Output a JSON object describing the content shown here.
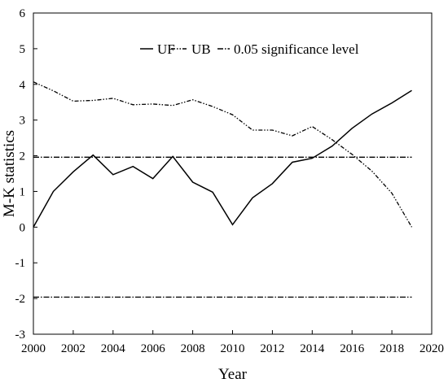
{
  "chart_data": {
    "type": "line",
    "xlabel": "Year",
    "ylabel": "M-K statistics",
    "xlim": [
      2000,
      2020
    ],
    "ylim": [
      -3,
      6
    ],
    "xticks": [
      "2000",
      "2002",
      "2004",
      "2006",
      "2008",
      "2010",
      "2012",
      "2014",
      "2016",
      "2018",
      "2020"
    ],
    "yticks": [
      "-3",
      "-2",
      "-1",
      "0",
      "1",
      "2",
      "3",
      "4",
      "5",
      "6"
    ],
    "grid": false,
    "legend_position": "top-right",
    "series": [
      {
        "name": "UF",
        "style": "solid",
        "x": [
          2000,
          2001,
          2002,
          2003,
          2004,
          2005,
          2006,
          2007,
          2008,
          2009,
          2010,
          2011,
          2012,
          2013,
          2014,
          2015,
          2016,
          2017,
          2018,
          2019
        ],
        "y": [
          0.0,
          1.0,
          1.55,
          2.02,
          1.47,
          1.7,
          1.36,
          1.98,
          1.26,
          0.98,
          0.07,
          0.82,
          1.22,
          1.82,
          1.93,
          2.27,
          2.77,
          3.17,
          3.48,
          3.83
        ]
      },
      {
        "name": "UB",
        "style": "dash-dot-dot",
        "x": [
          2000,
          2001,
          2002,
          2003,
          2004,
          2005,
          2006,
          2007,
          2008,
          2009,
          2010,
          2011,
          2012,
          2013,
          2014,
          2015,
          2016,
          2017,
          2018,
          2019
        ],
        "y": [
          4.07,
          3.82,
          3.53,
          3.55,
          3.61,
          3.43,
          3.45,
          3.41,
          3.57,
          3.38,
          3.15,
          2.72,
          2.72,
          2.56,
          2.82,
          2.45,
          2.04,
          1.57,
          0.95,
          0.0
        ]
      },
      {
        "name": "0.05 significance level",
        "style": "dash-dot",
        "x": [
          2000,
          2019
        ],
        "y": [
          1.96,
          1.96
        ]
      },
      {
        "name": "",
        "style": "dash-dot",
        "x": [
          2000,
          2019
        ],
        "y": [
          -1.96,
          -1.96
        ]
      }
    ]
  }
}
